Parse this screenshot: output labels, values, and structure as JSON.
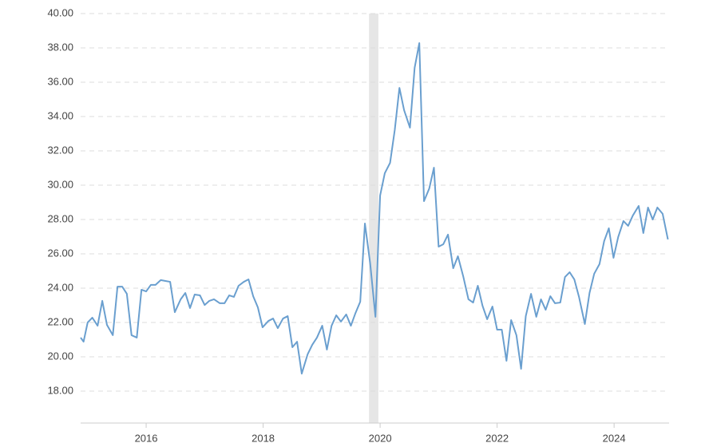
{
  "chart_data": {
    "type": "line",
    "x": [
      2014.88,
      2014.93,
      2015.0,
      2015.08,
      2015.17,
      2015.25,
      2015.33,
      2015.43,
      2015.51,
      2015.59,
      2015.67,
      2015.75,
      2015.84,
      2015.92,
      2016.0,
      2016.08,
      2016.16,
      2016.25,
      2016.33,
      2016.41,
      2016.49,
      2016.59,
      2016.67,
      2016.75,
      2016.83,
      2016.92,
      2017.0,
      2017.08,
      2017.16,
      2017.26,
      2017.34,
      2017.42,
      2017.5,
      2017.58,
      2017.67,
      2017.75,
      2017.83,
      2017.91,
      2017.99,
      2018.09,
      2018.17,
      2018.25,
      2018.34,
      2018.42,
      2018.5,
      2018.58,
      2018.66,
      2018.76,
      2018.84,
      2018.92,
      2019.01,
      2019.09,
      2019.17,
      2019.25,
      2019.33,
      2019.42,
      2019.5,
      2019.58,
      2019.66,
      2019.74,
      2019.83,
      2019.92,
      2020.0,
      2020.08,
      2020.17,
      2020.25,
      2020.33,
      2020.41,
      2020.51,
      2020.59,
      2020.67,
      2020.75,
      2020.84,
      2020.92,
      2021.0,
      2021.08,
      2021.16,
      2021.25,
      2021.33,
      2021.42,
      2021.51,
      2021.59,
      2021.67,
      2021.75,
      2021.83,
      2021.92,
      2022.0,
      2022.08,
      2022.16,
      2022.24,
      2022.33,
      2022.41,
      2022.49,
      2022.58,
      2022.67,
      2022.75,
      2022.83,
      2022.91,
      2022.99,
      2023.08,
      2023.16,
      2023.24,
      2023.32,
      2023.4,
      2023.5,
      2023.58,
      2023.66,
      2023.75,
      2023.83,
      2023.91,
      2023.99,
      2024.07,
      2024.16,
      2024.24,
      2024.32,
      2024.42,
      2024.5,
      2024.58,
      2024.66,
      2024.74,
      2024.83,
      2024.92
    ],
    "series": [
      {
        "color": "#6a9fcf",
        "values": [
          21.12,
          20.88,
          22.0,
          22.28,
          21.81,
          23.26,
          21.86,
          21.26,
          24.09,
          24.09,
          23.67,
          21.26,
          21.12,
          23.91,
          23.81,
          24.19,
          24.19,
          24.47,
          24.42,
          24.37,
          22.6,
          23.35,
          23.72,
          22.84,
          23.63,
          23.58,
          23.02,
          23.26,
          23.35,
          23.12,
          23.12,
          23.58,
          23.49,
          24.14,
          24.37,
          24.51,
          23.53,
          22.88,
          21.72,
          22.09,
          22.23,
          21.67,
          22.23,
          22.37,
          20.56,
          20.88,
          19.02,
          20.14,
          20.7,
          21.12,
          21.81,
          20.42,
          21.81,
          22.42,
          22.05,
          22.47,
          21.81,
          22.56,
          23.21,
          27.77,
          25.44,
          22.33,
          29.4,
          30.7,
          31.3,
          33.21,
          35.67,
          34.37,
          33.35,
          36.84,
          38.28,
          29.07,
          29.81,
          31.02,
          26.42,
          26.56,
          27.12,
          25.16,
          25.86,
          24.7,
          23.35,
          23.16,
          24.14,
          22.98,
          22.19,
          22.93,
          21.58,
          21.58,
          19.77,
          22.14,
          21.26,
          19.3,
          22.37,
          23.67,
          22.33,
          23.35,
          22.74,
          23.53,
          23.12,
          23.16,
          24.65,
          24.93,
          24.51,
          23.49,
          21.91,
          23.72,
          24.84,
          25.4,
          26.74,
          27.49,
          25.77,
          26.98,
          27.91,
          27.63,
          28.23,
          28.79,
          27.21,
          28.7,
          28.0,
          28.7,
          28.33,
          26.84
        ]
      }
    ],
    "xlim": [
      2014.88,
      2024.94
    ],
    "xticks": [
      2016,
      2018,
      2020,
      2022,
      2024
    ],
    "ylim": [
      16.14,
      40
    ],
    "yticks": [
      {
        "value": 18,
        "label": "18.00"
      },
      {
        "value": 20,
        "label": "20.00"
      },
      {
        "value": 22,
        "label": "22.00"
      },
      {
        "value": 24,
        "label": "24.00"
      },
      {
        "value": 26,
        "label": "26.00"
      },
      {
        "value": 28,
        "label": "28.00"
      },
      {
        "value": 30,
        "label": "30.00"
      },
      {
        "value": 32,
        "label": "32.00"
      },
      {
        "value": 34,
        "label": "34.00"
      },
      {
        "value": 36,
        "label": "36.00"
      },
      {
        "value": 38,
        "label": "38.00"
      },
      {
        "value": 40,
        "label": "40.00"
      }
    ],
    "shaded_band": {
      "x": [
        2019.81,
        2019.97
      ],
      "color": "#e6e6e6"
    },
    "grid": true
  }
}
